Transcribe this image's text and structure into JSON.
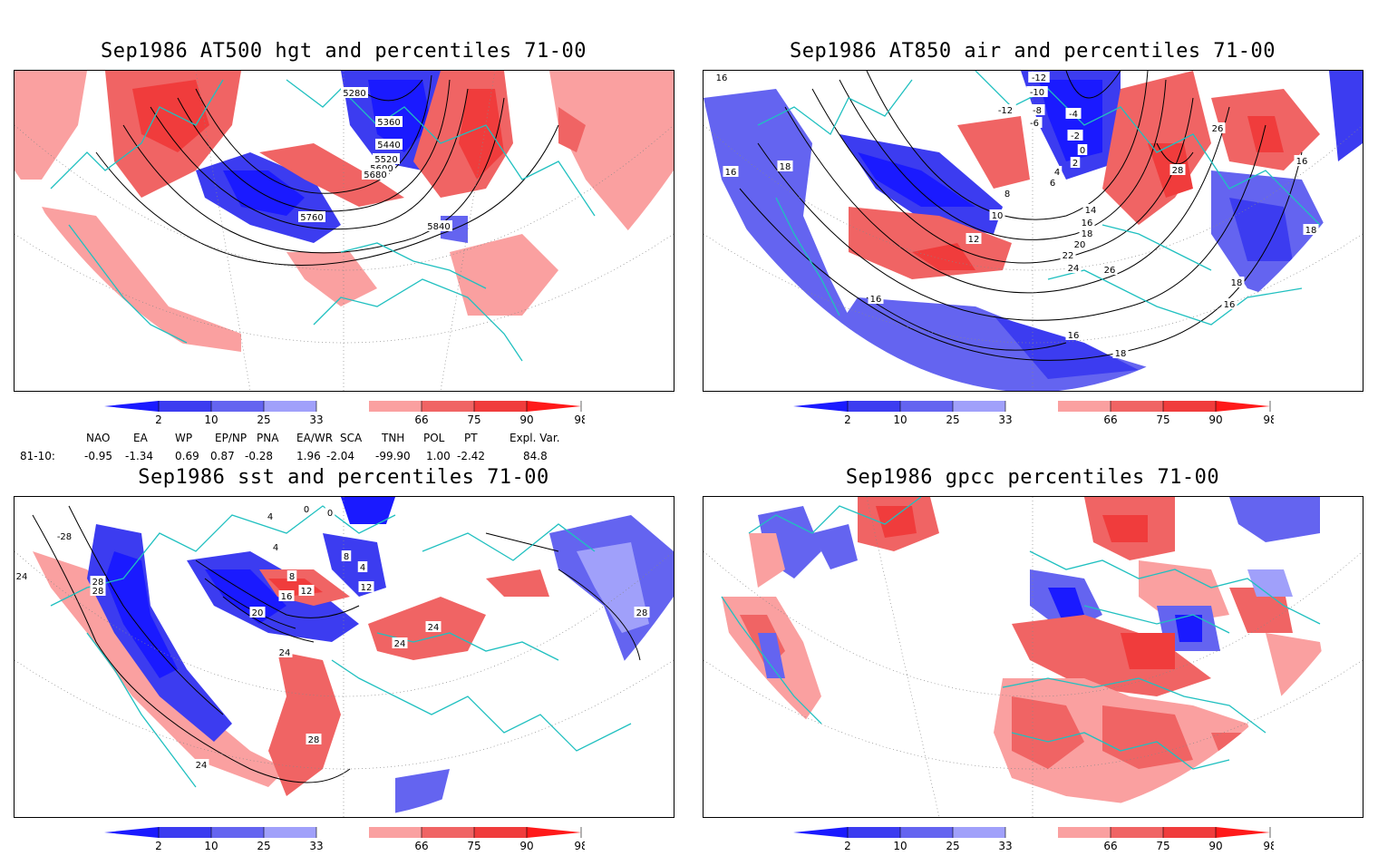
{
  "panels": [
    {
      "title": "Sep1986 AT500 hgt and percentiles 71-00",
      "contour_labels": [
        "5280",
        "5360",
        "5440",
        "5520",
        "5600",
        "5680",
        "5760",
        "5840"
      ]
    },
    {
      "title": "Sep1986 AT850 air and percentiles 71-00",
      "contour_labels": [
        "-12",
        "-10",
        "-12",
        "-8",
        "-6",
        "-4",
        "-2",
        "0",
        "2",
        "4",
        "6",
        "8",
        "10",
        "12",
        "14",
        "16",
        "18",
        "20",
        "22",
        "24",
        "26",
        "28",
        "26",
        "16",
        "18",
        "16",
        "16",
        "18",
        "18",
        "16",
        "16",
        "18",
        "16"
      ]
    },
    {
      "title": "Sep1986 sst and percentiles 71-00",
      "contour_labels": [
        "0",
        "0",
        "4",
        "-28",
        "24",
        "28",
        "28",
        "4",
        "8",
        "12",
        "16",
        "20",
        "24",
        "8",
        "4",
        "12",
        "24",
        "24",
        "28",
        "28",
        "24"
      ]
    },
    {
      "title": "Sep1986 gpcc percentiles 71-00",
      "contour_labels": []
    }
  ],
  "colorbar": {
    "ticks": [
      "2",
      "10",
      "25",
      "33",
      "66",
      "75",
      "90",
      "98"
    ],
    "colors": [
      "#1a1aff",
      "#3c3cf0",
      "#6464f0",
      "#a0a0fa",
      "#ffffff",
      "#faa0a0",
      "#f06464",
      "#f03c3c",
      "#ff1a1a"
    ]
  },
  "indices": {
    "row_label": "81-10:",
    "names": [
      "NAO",
      "EA",
      "WP",
      "EP/NP",
      "PNA",
      "EA/WR",
      "SCA",
      "TNH",
      "POL",
      "PT",
      "Expl. Var."
    ],
    "values": [
      "-0.95",
      "-1.34",
      "0.69",
      "0.87",
      "-0.28",
      "1.96",
      "-2.04",
      "-99.90",
      "1.00",
      "-2.42",
      "84.8"
    ]
  }
}
